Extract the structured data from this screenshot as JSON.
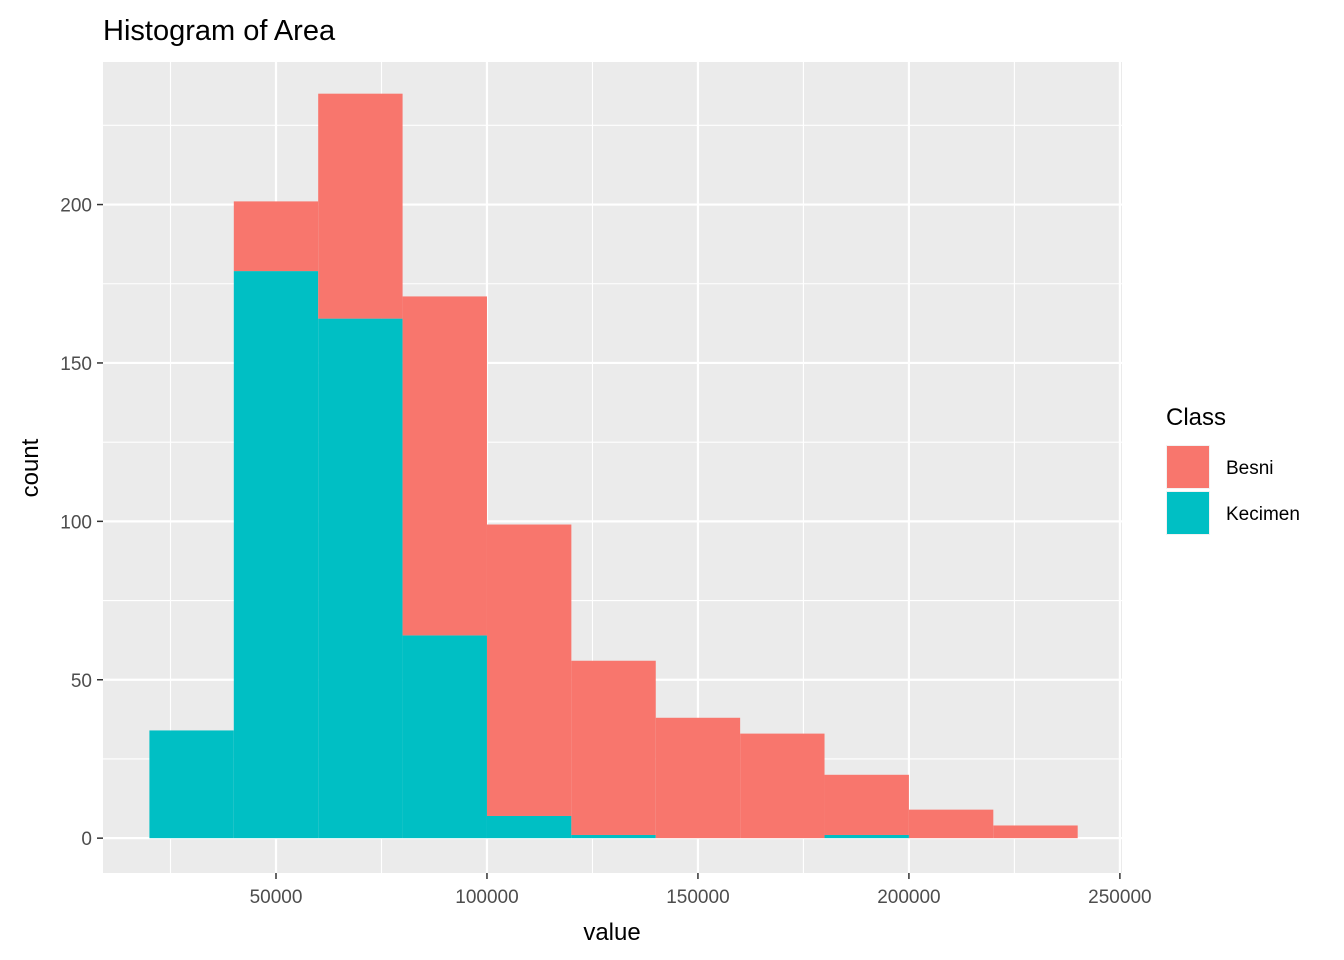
{
  "chart_data": {
    "type": "bar",
    "title": "Histogram of Area",
    "xlabel": "value",
    "ylabel": "count",
    "stacked": true,
    "bin_width": 20000,
    "bin_starts": [
      20000,
      40000,
      60000,
      80000,
      100000,
      120000,
      140000,
      160000,
      180000,
      200000,
      220000
    ],
    "xlim": [
      9000,
      250500
    ],
    "ylim": [
      -11,
      245
    ],
    "x_ticks": [
      50000,
      100000,
      150000,
      200000,
      250000
    ],
    "x_tick_labels": [
      "50000",
      "100000",
      "150000",
      "200000",
      "250000"
    ],
    "y_ticks": [
      0,
      50,
      100,
      150,
      200
    ],
    "y_tick_labels": [
      "0",
      "50",
      "100",
      "150",
      "200"
    ],
    "grid": true,
    "legend": {
      "title": "Class",
      "position": "right"
    },
    "series": [
      {
        "name": "Besni",
        "color": "#F8766D",
        "values": [
          0,
          22,
          71,
          107,
          92,
          55,
          38,
          33,
          19,
          9,
          4
        ]
      },
      {
        "name": "Kecimen",
        "color": "#00BFC4",
        "values": [
          34,
          179,
          164,
          64,
          7,
          1,
          0,
          0,
          1,
          0,
          0
        ]
      }
    ]
  }
}
